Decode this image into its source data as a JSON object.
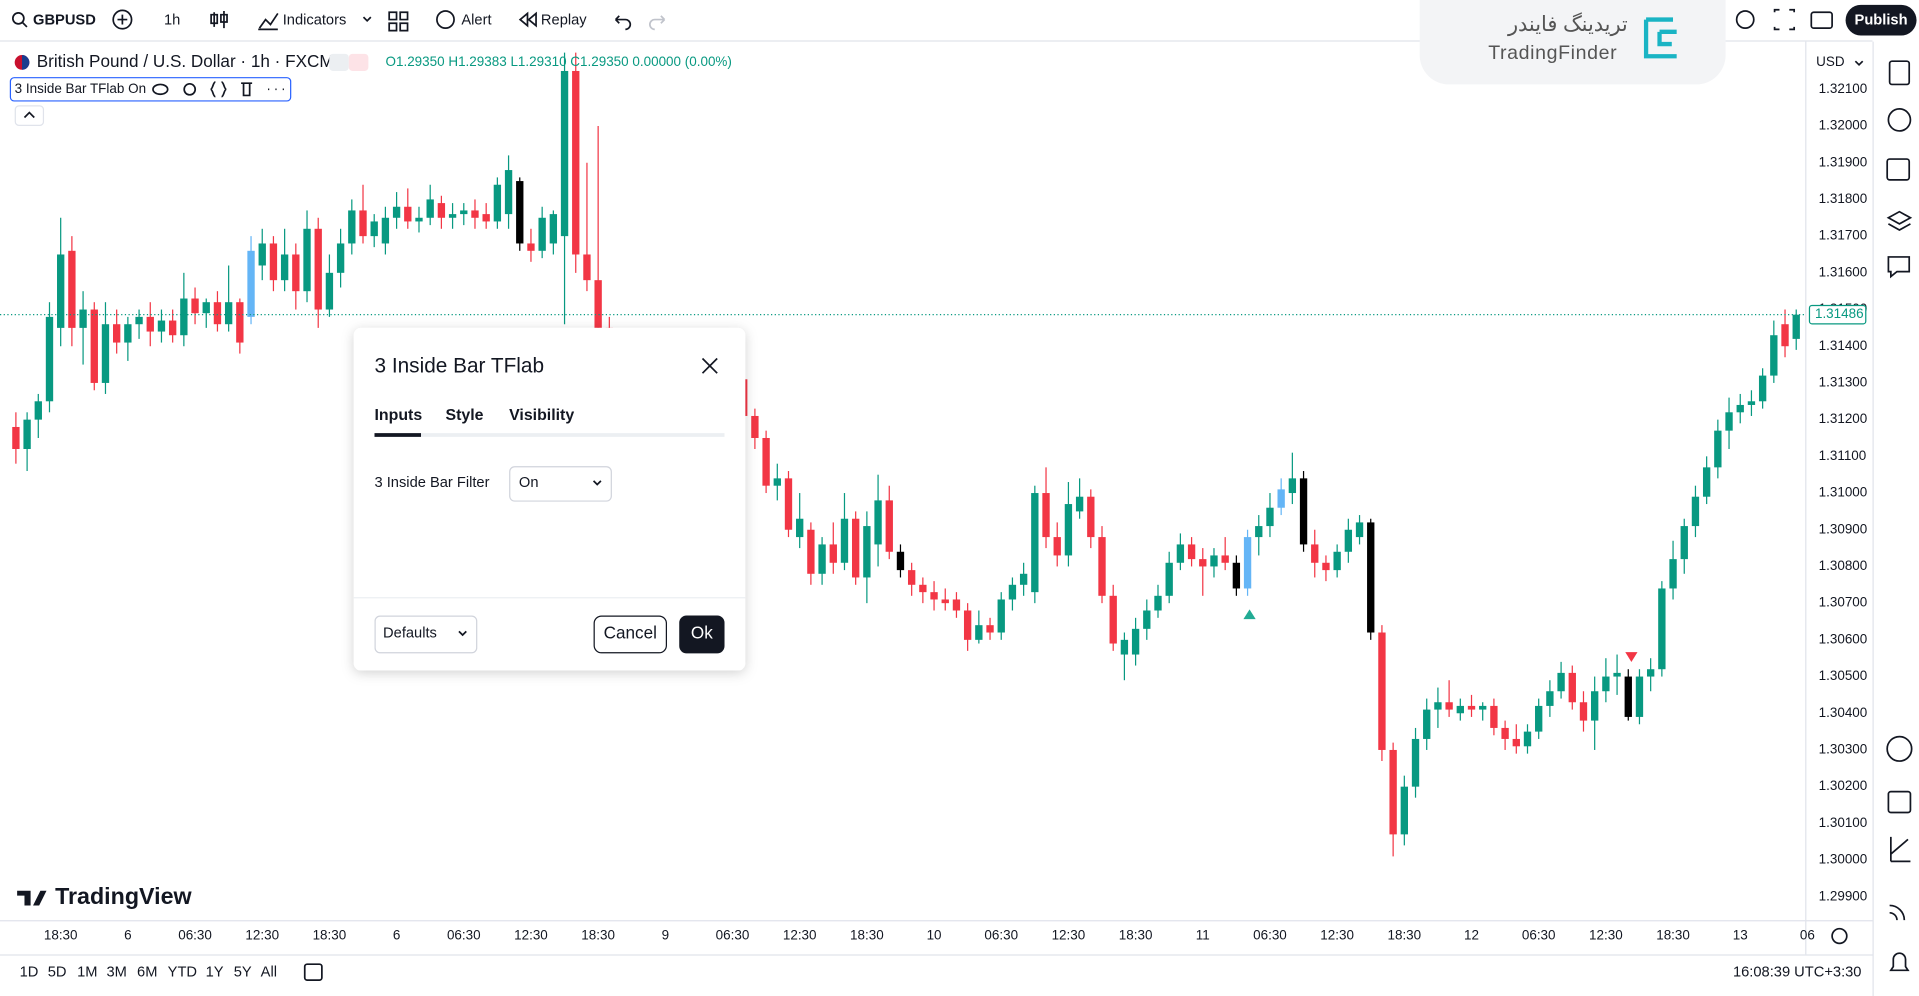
{
  "toolbar": {
    "symbol": "GBPUSD",
    "interval": "1h",
    "indicators": "Indicators",
    "alert": "Alert",
    "replay": "Replay",
    "publish": "Publish"
  },
  "logo": {
    "persian": "تریدینگ فایندر",
    "latin": "TradingFinder"
  },
  "legend": {
    "instrument": "British Pound / U.S. Dollar · 1h · FXCM",
    "ohlc": "O1.29350 H1.29383 L1.29310 C1.29350 0.00000 (0.00%)",
    "indicator": "3 Inside Bar TFlab On"
  },
  "dialog": {
    "title": "3 Inside Bar TFlab",
    "tabs": [
      "Inputs",
      "Style",
      "Visibility"
    ],
    "input_label": "3 Inside Bar Filter",
    "input_value": "On",
    "defaults": "Defaults",
    "cancel": "Cancel",
    "ok": "Ok"
  },
  "watermark": "TradingView",
  "footer": {
    "ranges": [
      "1D",
      "5D",
      "1M",
      "3M",
      "6M",
      "YTD",
      "1Y",
      "5Y",
      "All"
    ],
    "clock": "16:08:39 UTC+3:30"
  },
  "chart_data": {
    "type": "candlestick",
    "currency": "USD",
    "up_color": "#089981",
    "down_color": "#f23645",
    "grid": false,
    "last_price": {
      "value": 1.31486,
      "label": "1.31486"
    },
    "xlim": [
      -1.42,
      159.8
    ],
    "ylim": [
      1.29843,
      1.3221
    ],
    "xticks": [
      {
        "value": 4,
        "label": "18:30"
      },
      {
        "value": 10,
        "label": "6"
      },
      {
        "value": 16,
        "label": "06:30"
      },
      {
        "value": 22,
        "label": "12:30"
      },
      {
        "value": 28,
        "label": "18:30"
      },
      {
        "value": 34,
        "label": "6"
      },
      {
        "value": 40,
        "label": "06:30"
      },
      {
        "value": 46,
        "label": "12:30"
      },
      {
        "value": 52,
        "label": "18:30"
      },
      {
        "value": 58,
        "label": "9"
      },
      {
        "value": 64,
        "label": "06:30"
      },
      {
        "value": 70,
        "label": "12:30"
      },
      {
        "value": 76,
        "label": "18:30"
      },
      {
        "value": 82,
        "label": "10"
      },
      {
        "value": 88,
        "label": "06:30"
      },
      {
        "value": 94,
        "label": "12:30"
      },
      {
        "value": 100,
        "label": "18:30"
      },
      {
        "value": 106,
        "label": "11"
      },
      {
        "value": 112,
        "label": "06:30"
      },
      {
        "value": 118,
        "label": "12:30"
      },
      {
        "value": 124,
        "label": "18:30"
      },
      {
        "value": 130,
        "label": "12"
      },
      {
        "value": 136,
        "label": "06:30"
      },
      {
        "value": 142,
        "label": "12:30"
      },
      {
        "value": 148,
        "label": "18:30"
      },
      {
        "value": 154,
        "label": "13"
      },
      {
        "value": 160,
        "label": "06"
      }
    ],
    "yticks": [
      {
        "value": 1.321,
        "label": "1.32100"
      },
      {
        "value": 1.32,
        "label": "1.32000"
      },
      {
        "value": 1.319,
        "label": "1.31900"
      },
      {
        "value": 1.318,
        "label": "1.31800"
      },
      {
        "value": 1.317,
        "label": "1.31700"
      },
      {
        "value": 1.316,
        "label": "1.31600"
      },
      {
        "value": 1.315,
        "label": "1.31500"
      },
      {
        "value": 1.314,
        "label": "1.31400"
      },
      {
        "value": 1.313,
        "label": "1.31300"
      },
      {
        "value": 1.312,
        "label": "1.31200"
      },
      {
        "value": 1.311,
        "label": "1.31100"
      },
      {
        "value": 1.31,
        "label": "1.31000"
      },
      {
        "value": 1.309,
        "label": "1.30900"
      },
      {
        "value": 1.308,
        "label": "1.30800"
      },
      {
        "value": 1.307,
        "label": "1.30700"
      },
      {
        "value": 1.306,
        "label": "1.30600"
      },
      {
        "value": 1.305,
        "label": "1.30500"
      },
      {
        "value": 1.304,
        "label": "1.30400"
      },
      {
        "value": 1.303,
        "label": "1.30300"
      },
      {
        "value": 1.302,
        "label": "1.30200"
      },
      {
        "value": 1.301,
        "label": "1.30100"
      },
      {
        "value": 1.3,
        "label": "1.30000"
      },
      {
        "value": 1.299,
        "label": "1.29900"
      }
    ],
    "candles": [
      {
        "o": 1.3118,
        "h": 1.3122,
        "l": 1.3108,
        "c": 1.3112
      },
      {
        "o": 1.3112,
        "h": 1.3122,
        "l": 1.3106,
        "c": 1.312
      },
      {
        "o": 1.312,
        "h": 1.3127,
        "l": 1.3115,
        "c": 1.3125
      },
      {
        "o": 1.3125,
        "h": 1.3152,
        "l": 1.3122,
        "c": 1.3148
      },
      {
        "o": 1.3145,
        "h": 1.3175,
        "l": 1.314,
        "c": 1.3165
      },
      {
        "o": 1.3166,
        "h": 1.317,
        "l": 1.314,
        "c": 1.3145
      },
      {
        "o": 1.3145,
        "h": 1.3155,
        "l": 1.3135,
        "c": 1.315
      },
      {
        "o": 1.315,
        "h": 1.3152,
        "l": 1.3128,
        "c": 1.313
      },
      {
        "o": 1.313,
        "h": 1.3152,
        "l": 1.3127,
        "c": 1.3146
      },
      {
        "o": 1.3146,
        "h": 1.315,
        "l": 1.3138,
        "c": 1.3141
      },
      {
        "o": 1.3141,
        "h": 1.3148,
        "l": 1.3136,
        "c": 1.3146
      },
      {
        "o": 1.3146,
        "h": 1.315,
        "l": 1.3142,
        "c": 1.3148
      },
      {
        "o": 1.3148,
        "h": 1.3152,
        "l": 1.314,
        "c": 1.3144
      },
      {
        "o": 1.3144,
        "h": 1.315,
        "l": 1.3141,
        "c": 1.3147
      },
      {
        "o": 1.3147,
        "h": 1.315,
        "l": 1.3141,
        "c": 1.3143
      },
      {
        "o": 1.3143,
        "h": 1.316,
        "l": 1.314,
        "c": 1.3153
      },
      {
        "o": 1.3153,
        "h": 1.3156,
        "l": 1.3146,
        "c": 1.3149
      },
      {
        "o": 1.3149,
        "h": 1.3153,
        "l": 1.3145,
        "c": 1.3152
      },
      {
        "o": 1.3152,
        "h": 1.3155,
        "l": 1.3144,
        "c": 1.3146
      },
      {
        "o": 1.3146,
        "h": 1.3162,
        "l": 1.3144,
        "c": 1.3152
      },
      {
        "o": 1.3152,
        "h": 1.3153,
        "l": 1.3138,
        "c": 1.3141
      },
      {
        "o": 1.3148,
        "h": 1.317,
        "l": 1.3146,
        "c": 1.3166,
        "color": "#64b5f6"
      },
      {
        "o": 1.3162,
        "h": 1.3172,
        "l": 1.3158,
        "c": 1.3168
      },
      {
        "o": 1.3168,
        "h": 1.317,
        "l": 1.3155,
        "c": 1.3158
      },
      {
        "o": 1.3158,
        "h": 1.3172,
        "l": 1.3155,
        "c": 1.3165
      },
      {
        "o": 1.3165,
        "h": 1.3168,
        "l": 1.315,
        "c": 1.3155
      },
      {
        "o": 1.3155,
        "h": 1.3177,
        "l": 1.3152,
        "c": 1.3172
      },
      {
        "o": 1.3172,
        "h": 1.3175,
        "l": 1.3145,
        "c": 1.315
      },
      {
        "o": 1.315,
        "h": 1.3165,
        "l": 1.3148,
        "c": 1.316
      },
      {
        "o": 1.316,
        "h": 1.3172,
        "l": 1.3156,
        "c": 1.3168
      },
      {
        "o": 1.3168,
        "h": 1.318,
        "l": 1.3165,
        "c": 1.3177
      },
      {
        "o": 1.3177,
        "h": 1.3184,
        "l": 1.3168,
        "c": 1.317
      },
      {
        "o": 1.317,
        "h": 1.3176,
        "l": 1.3167,
        "c": 1.3174
      },
      {
        "o": 1.3168,
        "h": 1.3178,
        "l": 1.3165,
        "c": 1.3175
      },
      {
        "o": 1.3175,
        "h": 1.3182,
        "l": 1.3172,
        "c": 1.3178
      },
      {
        "o": 1.3178,
        "h": 1.3183,
        "l": 1.3172,
        "c": 1.3174
      },
      {
        "o": 1.3174,
        "h": 1.3178,
        "l": 1.3171,
        "c": 1.3175
      },
      {
        "o": 1.3175,
        "h": 1.3184,
        "l": 1.3173,
        "c": 1.318
      },
      {
        "o": 1.3179,
        "h": 1.3181,
        "l": 1.3172,
        "c": 1.3175
      },
      {
        "o": 1.3175,
        "h": 1.3179,
        "l": 1.3172,
        "c": 1.3176
      },
      {
        "o": 1.3176,
        "h": 1.3179,
        "l": 1.3173,
        "c": 1.3177
      },
      {
        "o": 1.3177,
        "h": 1.318,
        "l": 1.3172,
        "c": 1.3175
      },
      {
        "o": 1.3176,
        "h": 1.3179,
        "l": 1.3172,
        "c": 1.3174
      },
      {
        "o": 1.3174,
        "h": 1.3186,
        "l": 1.3172,
        "c": 1.3184
      },
      {
        "o": 1.3176,
        "h": 1.3192,
        "l": 1.3172,
        "c": 1.3188
      },
      {
        "o": 1.3185,
        "h": 1.3186,
        "l": 1.3166,
        "c": 1.3168,
        "color": "#000000"
      },
      {
        "o": 1.3168,
        "h": 1.3172,
        "l": 1.3163,
        "c": 1.3166
      },
      {
        "o": 1.3166,
        "h": 1.3178,
        "l": 1.3164,
        "c": 1.3175
      },
      {
        "o": 1.3168,
        "h": 1.3177,
        "l": 1.3165,
        "c": 1.3176
      },
      {
        "o": 1.317,
        "h": 1.322,
        "l": 1.3146,
        "c": 1.3215
      },
      {
        "o": 1.3215,
        "h": 1.322,
        "l": 1.316,
        "c": 1.3165
      },
      {
        "o": 1.3165,
        "h": 1.319,
        "l": 1.3155,
        "c": 1.3158
      },
      {
        "o": 1.3158,
        "h": 1.32,
        "l": 1.314,
        "c": 1.3145
      },
      {
        "o": 1.3145,
        "h": 1.3148,
        "l": 1.3135,
        "c": 1.3138
      },
      null,
      null,
      null,
      null,
      null,
      null,
      null,
      null,
      null,
      null,
      null,
      {
        "o": 1.3131,
        "h": 1.3133,
        "l": 1.312,
        "c": 1.3121
      },
      {
        "o": 1.3121,
        "h": 1.3123,
        "l": 1.3112,
        "c": 1.3115
      },
      {
        "o": 1.3115,
        "h": 1.3117,
        "l": 1.31,
        "c": 1.3102
      },
      {
        "o": 1.3102,
        "h": 1.3108,
        "l": 1.3098,
        "c": 1.3104
      },
      {
        "o": 1.3104,
        "h": 1.3106,
        "l": 1.3088,
        "c": 1.309
      },
      {
        "o": 1.3088,
        "h": 1.31,
        "l": 1.3085,
        "c": 1.3093
      },
      {
        "o": 1.309,
        "h": 1.3092,
        "l": 1.3075,
        "c": 1.3078
      },
      {
        "o": 1.3078,
        "h": 1.3088,
        "l": 1.3075,
        "c": 1.3086
      },
      {
        "o": 1.3086,
        "h": 1.3092,
        "l": 1.3078,
        "c": 1.3081
      },
      {
        "o": 1.3081,
        "h": 1.31,
        "l": 1.3079,
        "c": 1.3093
      },
      {
        "o": 1.3093,
        "h": 1.3095,
        "l": 1.3075,
        "c": 1.3077
      },
      {
        "o": 1.3077,
        "h": 1.3095,
        "l": 1.307,
        "c": 1.3091
      },
      {
        "o": 1.3086,
        "h": 1.3105,
        "l": 1.308,
        "c": 1.3098
      },
      {
        "o": 1.3098,
        "h": 1.3102,
        "l": 1.3082,
        "c": 1.3084
      },
      {
        "o": 1.3084,
        "h": 1.3086,
        "l": 1.3077,
        "c": 1.3079,
        "color": "#000000"
      },
      {
        "o": 1.3079,
        "h": 1.3081,
        "l": 1.3072,
        "c": 1.3075
      },
      {
        "o": 1.3075,
        "h": 1.3077,
        "l": 1.307,
        "c": 1.3073
      },
      {
        "o": 1.3073,
        "h": 1.3076,
        "l": 1.3068,
        "c": 1.3071
      },
      {
        "o": 1.3071,
        "h": 1.3074,
        "l": 1.3068,
        "c": 1.307
      },
      {
        "o": 1.3071,
        "h": 1.3073,
        "l": 1.3066,
        "c": 1.3068
      },
      {
        "o": 1.3068,
        "h": 1.307,
        "l": 1.3057,
        "c": 1.306
      },
      {
        "o": 1.306,
        "h": 1.3068,
        "l": 1.3059,
        "c": 1.3064
      },
      {
        "o": 1.3064,
        "h": 1.3066,
        "l": 1.306,
        "c": 1.3062
      },
      {
        "o": 1.3062,
        "h": 1.3073,
        "l": 1.306,
        "c": 1.3071
      },
      {
        "o": 1.3071,
        "h": 1.3077,
        "l": 1.3068,
        "c": 1.3075
      },
      {
        "o": 1.3075,
        "h": 1.3081,
        "l": 1.3072,
        "c": 1.3078
      },
      {
        "o": 1.3073,
        "h": 1.3102,
        "l": 1.307,
        "c": 1.31
      },
      {
        "o": 1.31,
        "h": 1.3107,
        "l": 1.3085,
        "c": 1.3088
      },
      {
        "o": 1.3088,
        "h": 1.3092,
        "l": 1.308,
        "c": 1.3083
      },
      {
        "o": 1.3083,
        "h": 1.3103,
        "l": 1.308,
        "c": 1.3097
      },
      {
        "o": 1.3095,
        "h": 1.3104,
        "l": 1.3093,
        "c": 1.3099
      },
      {
        "o": 1.3099,
        "h": 1.3101,
        "l": 1.3085,
        "c": 1.3088
      },
      {
        "o": 1.3088,
        "h": 1.3091,
        "l": 1.307,
        "c": 1.3072
      },
      {
        "o": 1.3072,
        "h": 1.3075,
        "l": 1.3057,
        "c": 1.3059
      },
      {
        "o": 1.3056,
        "h": 1.3062,
        "l": 1.3049,
        "c": 1.306
      },
      {
        "o": 1.3056,
        "h": 1.3066,
        "l": 1.3053,
        "c": 1.3063
      },
      {
        "o": 1.3063,
        "h": 1.3071,
        "l": 1.306,
        "c": 1.3068
      },
      {
        "o": 1.3068,
        "h": 1.3075,
        "l": 1.3066,
        "c": 1.3072
      },
      {
        "o": 1.3072,
        "h": 1.3084,
        "l": 1.307,
        "c": 1.3081
      },
      {
        "o": 1.3081,
        "h": 1.3089,
        "l": 1.3079,
        "c": 1.3086
      },
      {
        "o": 1.3086,
        "h": 1.3088,
        "l": 1.308,
        "c": 1.3082
      },
      {
        "o": 1.3082,
        "h": 1.3085,
        "l": 1.3072,
        "c": 1.308
      },
      {
        "o": 1.308,
        "h": 1.3085,
        "l": 1.3077,
        "c": 1.3083
      },
      {
        "o": 1.3083,
        "h": 1.3088,
        "l": 1.3079,
        "c": 1.3081
      },
      {
        "o": 1.3081,
        "h": 1.3083,
        "l": 1.3072,
        "c": 1.3074,
        "color": "#000000"
      },
      {
        "o": 1.3074,
        "h": 1.309,
        "l": 1.3072,
        "c": 1.3088,
        "color": "#64b5f6"
      },
      {
        "o": 1.3088,
        "h": 1.3094,
        "l": 1.3083,
        "c": 1.3091
      },
      {
        "o": 1.3091,
        "h": 1.31,
        "l": 1.3088,
        "c": 1.3096
      },
      {
        "o": 1.3096,
        "h": 1.3104,
        "l": 1.3094,
        "c": 1.3101,
        "color": "#64b5f6"
      },
      {
        "o": 1.31,
        "h": 1.3111,
        "l": 1.3097,
        "c": 1.3104
      },
      {
        "o": 1.3104,
        "h": 1.3106,
        "l": 1.3084,
        "c": 1.3086,
        "color": "#000000"
      },
      {
        "o": 1.3086,
        "h": 1.309,
        "l": 1.3077,
        "c": 1.3081
      },
      {
        "o": 1.3081,
        "h": 1.3083,
        "l": 1.3076,
        "c": 1.3079
      },
      {
        "o": 1.3079,
        "h": 1.3086,
        "l": 1.3077,
        "c": 1.3084
      },
      {
        "o": 1.3084,
        "h": 1.3093,
        "l": 1.3081,
        "c": 1.309
      },
      {
        "o": 1.3088,
        "h": 1.3094,
        "l": 1.3086,
        "c": 1.3092
      },
      {
        "o": 1.3092,
        "h": 1.3093,
        "l": 1.306,
        "c": 1.3062,
        "color": "#000000"
      },
      {
        "o": 1.3062,
        "h": 1.3064,
        "l": 1.3027,
        "c": 1.303
      },
      {
        "o": 1.303,
        "h": 1.3032,
        "l": 1.3001,
        "c": 1.3007
      },
      {
        "o": 1.3007,
        "h": 1.3023,
        "l": 1.3004,
        "c": 1.302
      },
      {
        "o": 1.302,
        "h": 1.3036,
        "l": 1.3017,
        "c": 1.3033
      },
      {
        "o": 1.3033,
        "h": 1.3044,
        "l": 1.303,
        "c": 1.3041
      },
      {
        "o": 1.3041,
        "h": 1.3047,
        "l": 1.3036,
        "c": 1.3043
      },
      {
        "o": 1.3043,
        "h": 1.3049,
        "l": 1.3039,
        "c": 1.3041
      },
      {
        "o": 1.304,
        "h": 1.3044,
        "l": 1.3038,
        "c": 1.3042
      },
      {
        "o": 1.3042,
        "h": 1.3045,
        "l": 1.3039,
        "c": 1.3041
      },
      {
        "o": 1.3041,
        "h": 1.3043,
        "l": 1.3038,
        "c": 1.3042
      },
      {
        "o": 1.3042,
        "h": 1.3044,
        "l": 1.3034,
        "c": 1.3036
      },
      {
        "o": 1.3036,
        "h": 1.3038,
        "l": 1.303,
        "c": 1.3033
      },
      {
        "o": 1.3033,
        "h": 1.3037,
        "l": 1.3029,
        "c": 1.3031
      },
      {
        "o": 1.3031,
        "h": 1.3037,
        "l": 1.3029,
        "c": 1.3035
      },
      {
        "o": 1.3035,
        "h": 1.3044,
        "l": 1.3033,
        "c": 1.3042
      },
      {
        "o": 1.3042,
        "h": 1.3049,
        "l": 1.3039,
        "c": 1.3046
      },
      {
        "o": 1.3046,
        "h": 1.3054,
        "l": 1.3044,
        "c": 1.3051
      },
      {
        "o": 1.3051,
        "h": 1.3053,
        "l": 1.3041,
        "c": 1.3043
      },
      {
        "o": 1.3043,
        "h": 1.3046,
        "l": 1.3035,
        "c": 1.3038
      },
      {
        "o": 1.3038,
        "h": 1.305,
        "l": 1.303,
        "c": 1.3046
      },
      {
        "o": 1.3046,
        "h": 1.3055,
        "l": 1.3043,
        "c": 1.305
      },
      {
        "o": 1.305,
        "h": 1.3056,
        "l": 1.3045,
        "c": 1.3051
      },
      {
        "o": 1.305,
        "h": 1.3052,
        "l": 1.3038,
        "c": 1.3039,
        "color": "#000000"
      },
      {
        "o": 1.3039,
        "h": 1.3052,
        "l": 1.3037,
        "c": 1.305
      },
      {
        "o": 1.305,
        "h": 1.3055,
        "l": 1.3046,
        "c": 1.3052
      },
      {
        "o": 1.3052,
        "h": 1.3076,
        "l": 1.305,
        "c": 1.3074
      },
      {
        "o": 1.3074,
        "h": 1.3087,
        "l": 1.3071,
        "c": 1.3082
      },
      {
        "o": 1.3082,
        "h": 1.3093,
        "l": 1.3078,
        "c": 1.3091
      },
      {
        "o": 1.3091,
        "h": 1.3102,
        "l": 1.3088,
        "c": 1.3099
      },
      {
        "o": 1.3099,
        "h": 1.311,
        "l": 1.3097,
        "c": 1.3107
      },
      {
        "o": 1.3107,
        "h": 1.312,
        "l": 1.3104,
        "c": 1.3117
      },
      {
        "o": 1.3117,
        "h": 1.3126,
        "l": 1.3112,
        "c": 1.3122
      },
      {
        "o": 1.3122,
        "h": 1.3127,
        "l": 1.3119,
        "c": 1.3124
      },
      {
        "o": 1.3124,
        "h": 1.3128,
        "l": 1.3121,
        "c": 1.3125
      },
      {
        "o": 1.3125,
        "h": 1.3134,
        "l": 1.3123,
        "c": 1.3132
      },
      {
        "o": 1.3132,
        "h": 1.3147,
        "l": 1.313,
        "c": 1.3143
      },
      {
        "o": 1.3146,
        "h": 1.315,
        "l": 1.3137,
        "c": 1.314
      },
      {
        "o": 1.3142,
        "h": 1.315,
        "l": 1.3139,
        "c": 1.31486
      }
    ]
  }
}
